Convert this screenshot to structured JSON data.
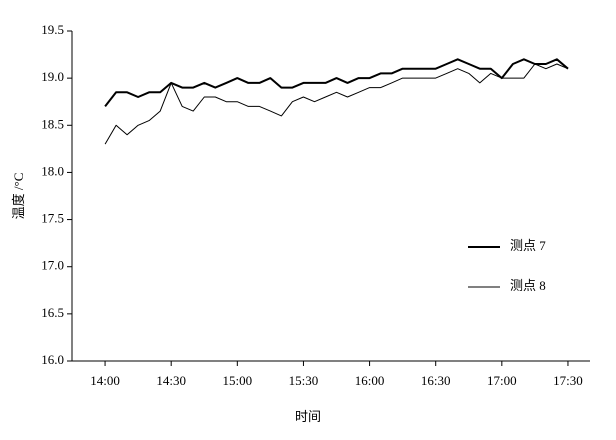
{
  "chart_data": {
    "type": "line",
    "y_label": "温度 /°C",
    "x_label": "时间",
    "x": [
      "14:00",
      "14:05",
      "14:10",
      "14:15",
      "14:20",
      "14:25",
      "14:30",
      "14:35",
      "14:40",
      "14:45",
      "14:50",
      "14:55",
      "15:00",
      "15:05",
      "15:10",
      "15:15",
      "15:20",
      "15:25",
      "15:30",
      "15:35",
      "15:40",
      "15:45",
      "15:50",
      "15:55",
      "16:00",
      "16:05",
      "16:10",
      "16:15",
      "16:20",
      "16:25",
      "16:30",
      "16:35",
      "16:40",
      "16:45",
      "16:50",
      "16:55",
      "17:00",
      "17:05",
      "17:10",
      "17:15",
      "17:20",
      "17:25",
      "17:30"
    ],
    "series": [
      {
        "name": "测点 7",
        "color": "#000000",
        "values": [
          18.7,
          18.85,
          18.85,
          18.8,
          18.85,
          18.85,
          18.95,
          18.9,
          18.9,
          18.95,
          18.9,
          18.95,
          19.0,
          18.95,
          18.95,
          19.0,
          18.9,
          18.9,
          18.95,
          18.95,
          18.95,
          19.0,
          18.95,
          19.0,
          19.0,
          19.05,
          19.05,
          19.1,
          19.1,
          19.1,
          19.1,
          19.15,
          19.2,
          19.15,
          19.1,
          19.1,
          19.0,
          19.15,
          19.2,
          19.15,
          19.15,
          19.2,
          19.1
        ]
      },
      {
        "name": "测点 8",
        "color": "#000000",
        "values": [
          18.3,
          18.5,
          18.4,
          18.5,
          18.55,
          18.65,
          18.95,
          18.7,
          18.65,
          18.8,
          18.8,
          18.75,
          18.75,
          18.7,
          18.7,
          18.65,
          18.6,
          18.75,
          18.8,
          18.75,
          18.8,
          18.85,
          18.8,
          18.85,
          18.9,
          18.9,
          18.95,
          19.0,
          19.0,
          19.0,
          19.0,
          19.05,
          19.1,
          19.05,
          18.95,
          19.05,
          19.0,
          19.0,
          19.0,
          19.15,
          19.1,
          19.15,
          19.1
        ]
      }
    ],
    "xlim": [
      "13:45",
      "17:40"
    ],
    "xticks": [
      "14:00",
      "14:30",
      "15:00",
      "15:30",
      "16:00",
      "16:30",
      "17:00",
      "17:30"
    ],
    "ylim": [
      16,
      19.5
    ],
    "yticks": [
      {
        "value": 16,
        "label": "16.0"
      },
      {
        "value": 16.5,
        "label": "16.5"
      },
      {
        "value": 17,
        "label": "17.0"
      },
      {
        "value": 17.5,
        "label": "17.5"
      },
      {
        "value": 18,
        "label": "18.0"
      },
      {
        "value": 18.5,
        "label": "18.5"
      },
      {
        "value": 19,
        "label": "19.0"
      },
      {
        "value": 19.5,
        "label": "19.5"
      }
    ],
    "grid": false,
    "legend": "right"
  }
}
